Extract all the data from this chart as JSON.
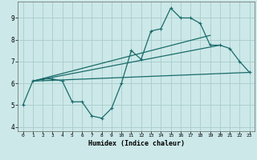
{
  "xlabel": "Humidex (Indice chaleur)",
  "background_color": "#cce8e8",
  "grid_color": "#aacccc",
  "line_color": "#1a6b6b",
  "xlim": [
    -0.5,
    23.5
  ],
  "ylim": [
    3.8,
    9.75
  ],
  "xticks": [
    0,
    1,
    2,
    3,
    4,
    5,
    6,
    7,
    8,
    9,
    10,
    11,
    12,
    13,
    14,
    15,
    16,
    17,
    18,
    19,
    20,
    21,
    22,
    23
  ],
  "yticks": [
    4,
    5,
    6,
    7,
    8,
    9
  ],
  "main_line_x": [
    0,
    1,
    2,
    3,
    4,
    5,
    6,
    7,
    8,
    9,
    10,
    11,
    12,
    13,
    14,
    15,
    16,
    17,
    18,
    19,
    20,
    21,
    22,
    23
  ],
  "main_line_y": [
    5.0,
    6.1,
    6.2,
    6.2,
    6.1,
    5.15,
    5.15,
    4.5,
    4.4,
    4.85,
    6.0,
    7.5,
    7.1,
    8.4,
    8.5,
    9.45,
    9.0,
    9.0,
    8.75,
    7.75,
    7.75,
    7.6,
    7.0,
    6.5
  ],
  "line2_x": [
    1,
    23
  ],
  "line2_y": [
    6.1,
    6.5
  ],
  "line3_x": [
    1,
    20
  ],
  "line3_y": [
    6.1,
    7.75
  ],
  "line4_x": [
    1,
    19
  ],
  "line4_y": [
    6.1,
    8.2
  ],
  "spine_color": "#666666"
}
